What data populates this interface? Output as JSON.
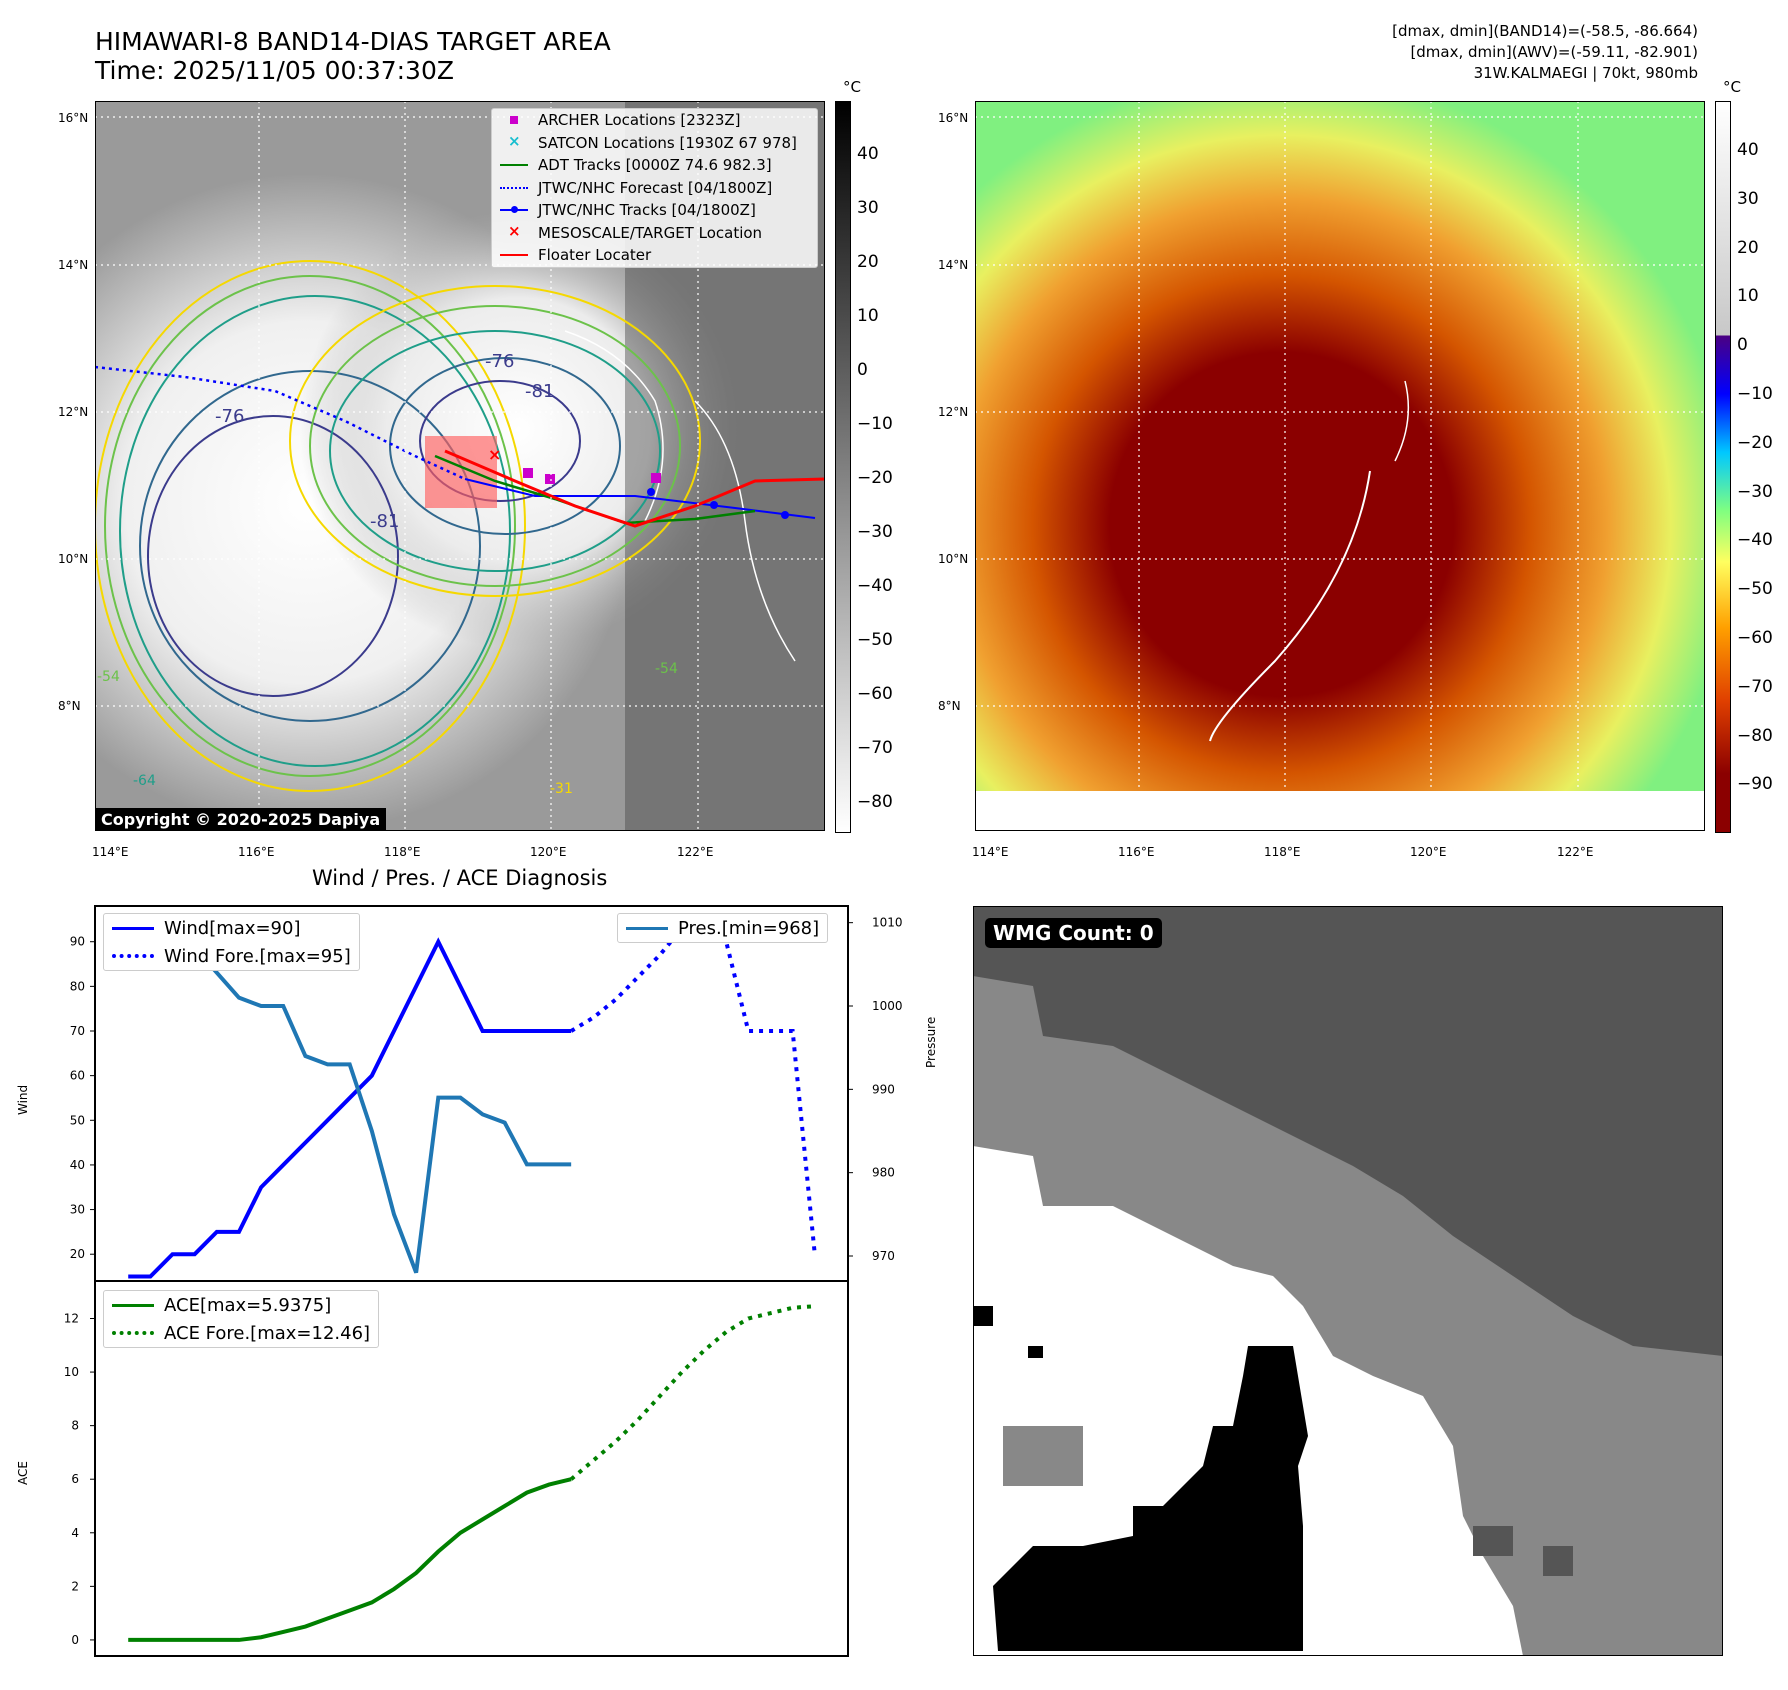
{
  "header": {
    "title_line1": "HIMAWARI-8 BAND14-DIAS TARGET AREA",
    "title_line2": "Time: 2025/11/05 00:37:30Z",
    "stat_line1": "[dmax, dmin](BAND14)=(-58.5, -86.664)",
    "stat_line2": "[dmax, dmin](AWV)=(-59.11, -82.901)",
    "stat_line3": "31W.KALMAEGI | 70kt, 980mb"
  },
  "map_ir": {
    "lat_labels": [
      "16°N",
      "14°N",
      "12°N",
      "10°N",
      "8°N"
    ],
    "lon_labels": [
      "114°E",
      "116°E",
      "118°E",
      "120°E",
      "122°E"
    ],
    "contour_labels": [
      "-76",
      "-76",
      "-81",
      "-81",
      "-54",
      "-64",
      "-31",
      "-54"
    ],
    "copyright": "Copyright © 2020-2025 Dapiya",
    "colorbar_unit": "°C",
    "colorbar_ticks": [
      "40",
      "30",
      "20",
      "10",
      "0",
      "−10",
      "−20",
      "−30",
      "−40",
      "−50",
      "−60",
      "−70",
      "−80"
    ],
    "legend": [
      {
        "label": "ARCHER Locations [2323Z]",
        "color": "#cc00cc",
        "symbol": "square"
      },
      {
        "label": "SATCON Locations [1930Z 67 978]",
        "color": "#17becf",
        "symbol": "x"
      },
      {
        "label": "ADT Tracks [0000Z 74.6 982.3]",
        "color": "#008000",
        "symbol": "line"
      },
      {
        "label": "JTWC/NHC Forecast [04/1800Z]",
        "color": "#0000ff",
        "symbol": "dotted"
      },
      {
        "label": "JTWC/NHC Tracks [04/1800Z]",
        "color": "#0000ff",
        "symbol": "line-dot"
      },
      {
        "label": "MESOSCALE/TARGET Location",
        "color": "#ff0000",
        "symbol": "x"
      },
      {
        "label": "Floater Locater",
        "color": "#ff0000",
        "symbol": "line"
      }
    ]
  },
  "map_awv": {
    "lat_labels": [
      "16°N",
      "14°N",
      "12°N",
      "10°N",
      "8°N"
    ],
    "lon_labels": [
      "114°E",
      "116°E",
      "118°E",
      "120°E",
      "122°E"
    ],
    "colorbar_unit": "°C",
    "colorbar_ticks": [
      "40",
      "30",
      "20",
      "10",
      "0",
      "−10",
      "−20",
      "−30",
      "−40",
      "−50",
      "−60",
      "−70",
      "−80",
      "−90"
    ]
  },
  "wmg_panel": {
    "label": "WMG Count: 0"
  },
  "chart_data": [
    {
      "type": "line",
      "title": "Wind / Pres. / ACE Diagnosis",
      "ylabel": "Wind",
      "ylabel_right": "Pressure",
      "ylim": [
        14,
        98
      ],
      "ylim_right": [
        967,
        1012
      ],
      "yticks": [
        20,
        30,
        40,
        50,
        60,
        70,
        80,
        90
      ],
      "yticks_right": [
        970,
        980,
        990,
        1000,
        1010
      ],
      "series": [
        {
          "name": "Wind[max=90]",
          "axis": "left",
          "style": "solid",
          "color": "#0000ff",
          "x": [
            0,
            1,
            2,
            3,
            4,
            5,
            6,
            7,
            8,
            9,
            10,
            11,
            12,
            13,
            14,
            15,
            16,
            17,
            18,
            19,
            20
          ],
          "y": [
            15,
            15,
            20,
            20,
            25,
            25,
            35,
            40,
            45,
            50,
            55,
            60,
            70,
            80,
            90,
            80,
            70,
            70,
            70,
            70,
            70
          ]
        },
        {
          "name": "Wind Fore.[max=95]",
          "axis": "left",
          "style": "dotted",
          "color": "#0000ff",
          "x": [
            20,
            21,
            22,
            23,
            24,
            25,
            26,
            27,
            28,
            29,
            30,
            31
          ],
          "y": [
            70,
            73,
            77,
            82,
            87,
            93,
            95,
            90,
            70,
            70,
            70,
            20
          ]
        },
        {
          "name": "Pres.[min=968]",
          "axis": "right",
          "style": "solid",
          "color": "#1f77b4",
          "x": [
            0,
            1,
            2,
            3,
            4,
            5,
            6,
            7,
            8,
            9,
            10,
            11,
            12,
            13,
            14,
            15,
            16,
            17,
            18,
            19,
            20
          ],
          "y": [
            1009,
            1008,
            1008,
            1007,
            1004,
            1001,
            1000,
            1000,
            994,
            993,
            993,
            985,
            975,
            968,
            989,
            989,
            987,
            986,
            981,
            981,
            981
          ]
        }
      ]
    },
    {
      "type": "line",
      "ylabel": "ACE",
      "ylim": [
        -0.6,
        13.4
      ],
      "yticks": [
        0,
        2,
        4,
        6,
        8,
        10,
        12
      ],
      "series": [
        {
          "name": "ACE[max=5.9375]",
          "style": "solid",
          "color": "#008000",
          "x": [
            0,
            1,
            2,
            3,
            4,
            5,
            6,
            7,
            8,
            9,
            10,
            11,
            12,
            13,
            14,
            15,
            16,
            17,
            18,
            19,
            20
          ],
          "y": [
            0,
            0,
            0,
            0,
            0,
            0,
            0.1,
            0.3,
            0.5,
            0.8,
            1.1,
            1.4,
            1.9,
            2.5,
            3.3,
            4.0,
            4.5,
            5.0,
            5.5,
            5.8,
            6.0
          ]
        },
        {
          "name": "ACE Fore.[max=12.46]",
          "style": "dotted",
          "color": "#008000",
          "x": [
            20,
            21,
            22,
            23,
            24,
            25,
            26,
            27,
            28,
            29,
            30,
            31
          ],
          "y": [
            6.0,
            6.7,
            7.4,
            8.2,
            9.1,
            10.0,
            10.8,
            11.5,
            12.0,
            12.2,
            12.4,
            12.46
          ]
        }
      ]
    }
  ]
}
